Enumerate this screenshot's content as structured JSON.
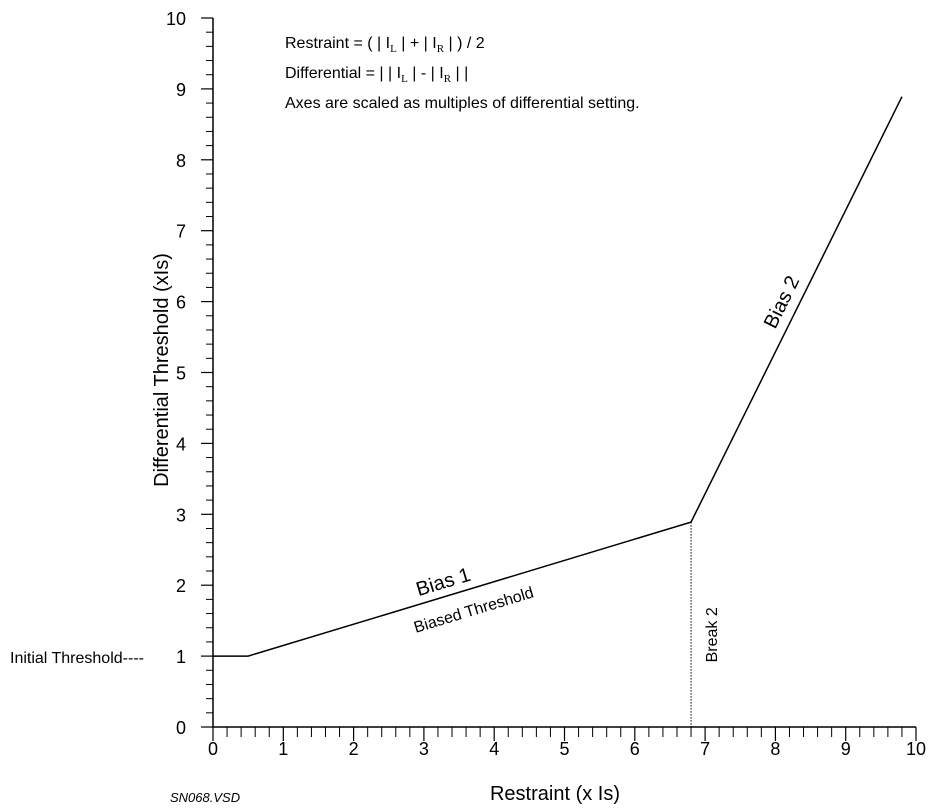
{
  "chart_data": {
    "type": "line",
    "x_label": "Restraint (x Is)",
    "y_label": "Differential Threshold (xIs)",
    "series": [
      {
        "name": "Biased Threshold",
        "color": "#000000",
        "x": [
          0,
          0.5,
          6.8,
          9.8
        ],
        "values": [
          1,
          1,
          2.89,
          8.89
        ]
      }
    ],
    "xlim": [
      0,
      10
    ],
    "ylim": [
      0,
      10
    ],
    "xticks": [
      0,
      1,
      2,
      3,
      4,
      5,
      6,
      7,
      8,
      9,
      10
    ],
    "yticks": [
      0,
      1,
      2,
      3,
      4,
      5,
      6,
      7,
      8,
      9,
      10
    ],
    "minor_divisions": 5,
    "formula_lines": [
      [
        "Restraint = ( | I",
        "L",
        " | + | I",
        "R",
        " | ) / 2"
      ],
      [
        "Differential =  | | I",
        "L",
        " | - | I",
        "R",
        " | |"
      ],
      [
        "Axes are scaled as multiples of differential setting."
      ]
    ],
    "initial_threshold_label": "Initial Threshold----",
    "bias1_label": "Bias 1",
    "bias2_label": "Bias 2",
    "break2_label": "Break 2",
    "file_label": "SN068.VSD"
  }
}
